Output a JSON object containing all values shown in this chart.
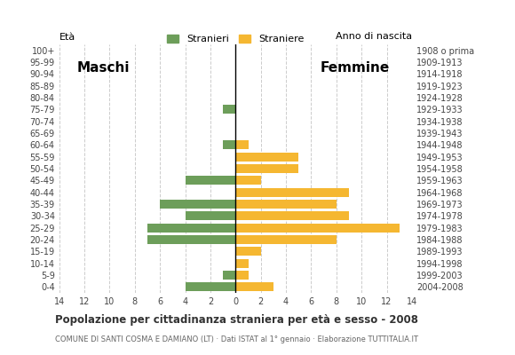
{
  "age_groups": [
    "100+",
    "95-99",
    "90-94",
    "85-89",
    "80-84",
    "75-79",
    "70-74",
    "65-69",
    "60-64",
    "55-59",
    "50-54",
    "45-49",
    "40-44",
    "35-39",
    "30-34",
    "25-29",
    "20-24",
    "15-19",
    "10-14",
    "5-9",
    "0-4"
  ],
  "birth_years": [
    "1908 o prima",
    "1909-1913",
    "1914-1918",
    "1919-1923",
    "1924-1928",
    "1929-1933",
    "1934-1938",
    "1939-1943",
    "1944-1948",
    "1949-1953",
    "1954-1958",
    "1959-1963",
    "1964-1968",
    "1969-1973",
    "1974-1978",
    "1979-1983",
    "1984-1988",
    "1989-1993",
    "1994-1998",
    "1999-2003",
    "2004-2008"
  ],
  "males": [
    0,
    0,
    0,
    0,
    0,
    1,
    0,
    0,
    1,
    0,
    0,
    4,
    0,
    6,
    4,
    7,
    7,
    0,
    0,
    1,
    4
  ],
  "females": [
    0,
    0,
    0,
    0,
    0,
    0,
    0,
    0,
    1,
    5,
    5,
    2,
    9,
    8,
    9,
    13,
    8,
    2,
    1,
    1,
    3
  ],
  "male_color": "#6d9e5a",
  "female_color": "#f5b731",
  "title": "Popolazione per cittadinanza straniera per età e sesso - 2008",
  "subtitle": "COMUNE DI SANTI COSMA E DAMIANO (LT) · Dati ISTAT al 1° gennaio · Elaborazione TUTTITALIA.IT",
  "ylabel_left": "Età",
  "ylabel_right": "Anno di nascita",
  "xlabel_left": "Maschi",
  "xlabel_right": "Femmine",
  "legend_male": "Stranieri",
  "legend_female": "Straniere",
  "xlim": 14,
  "background_color": "#ffffff",
  "grid_color": "#cccccc"
}
